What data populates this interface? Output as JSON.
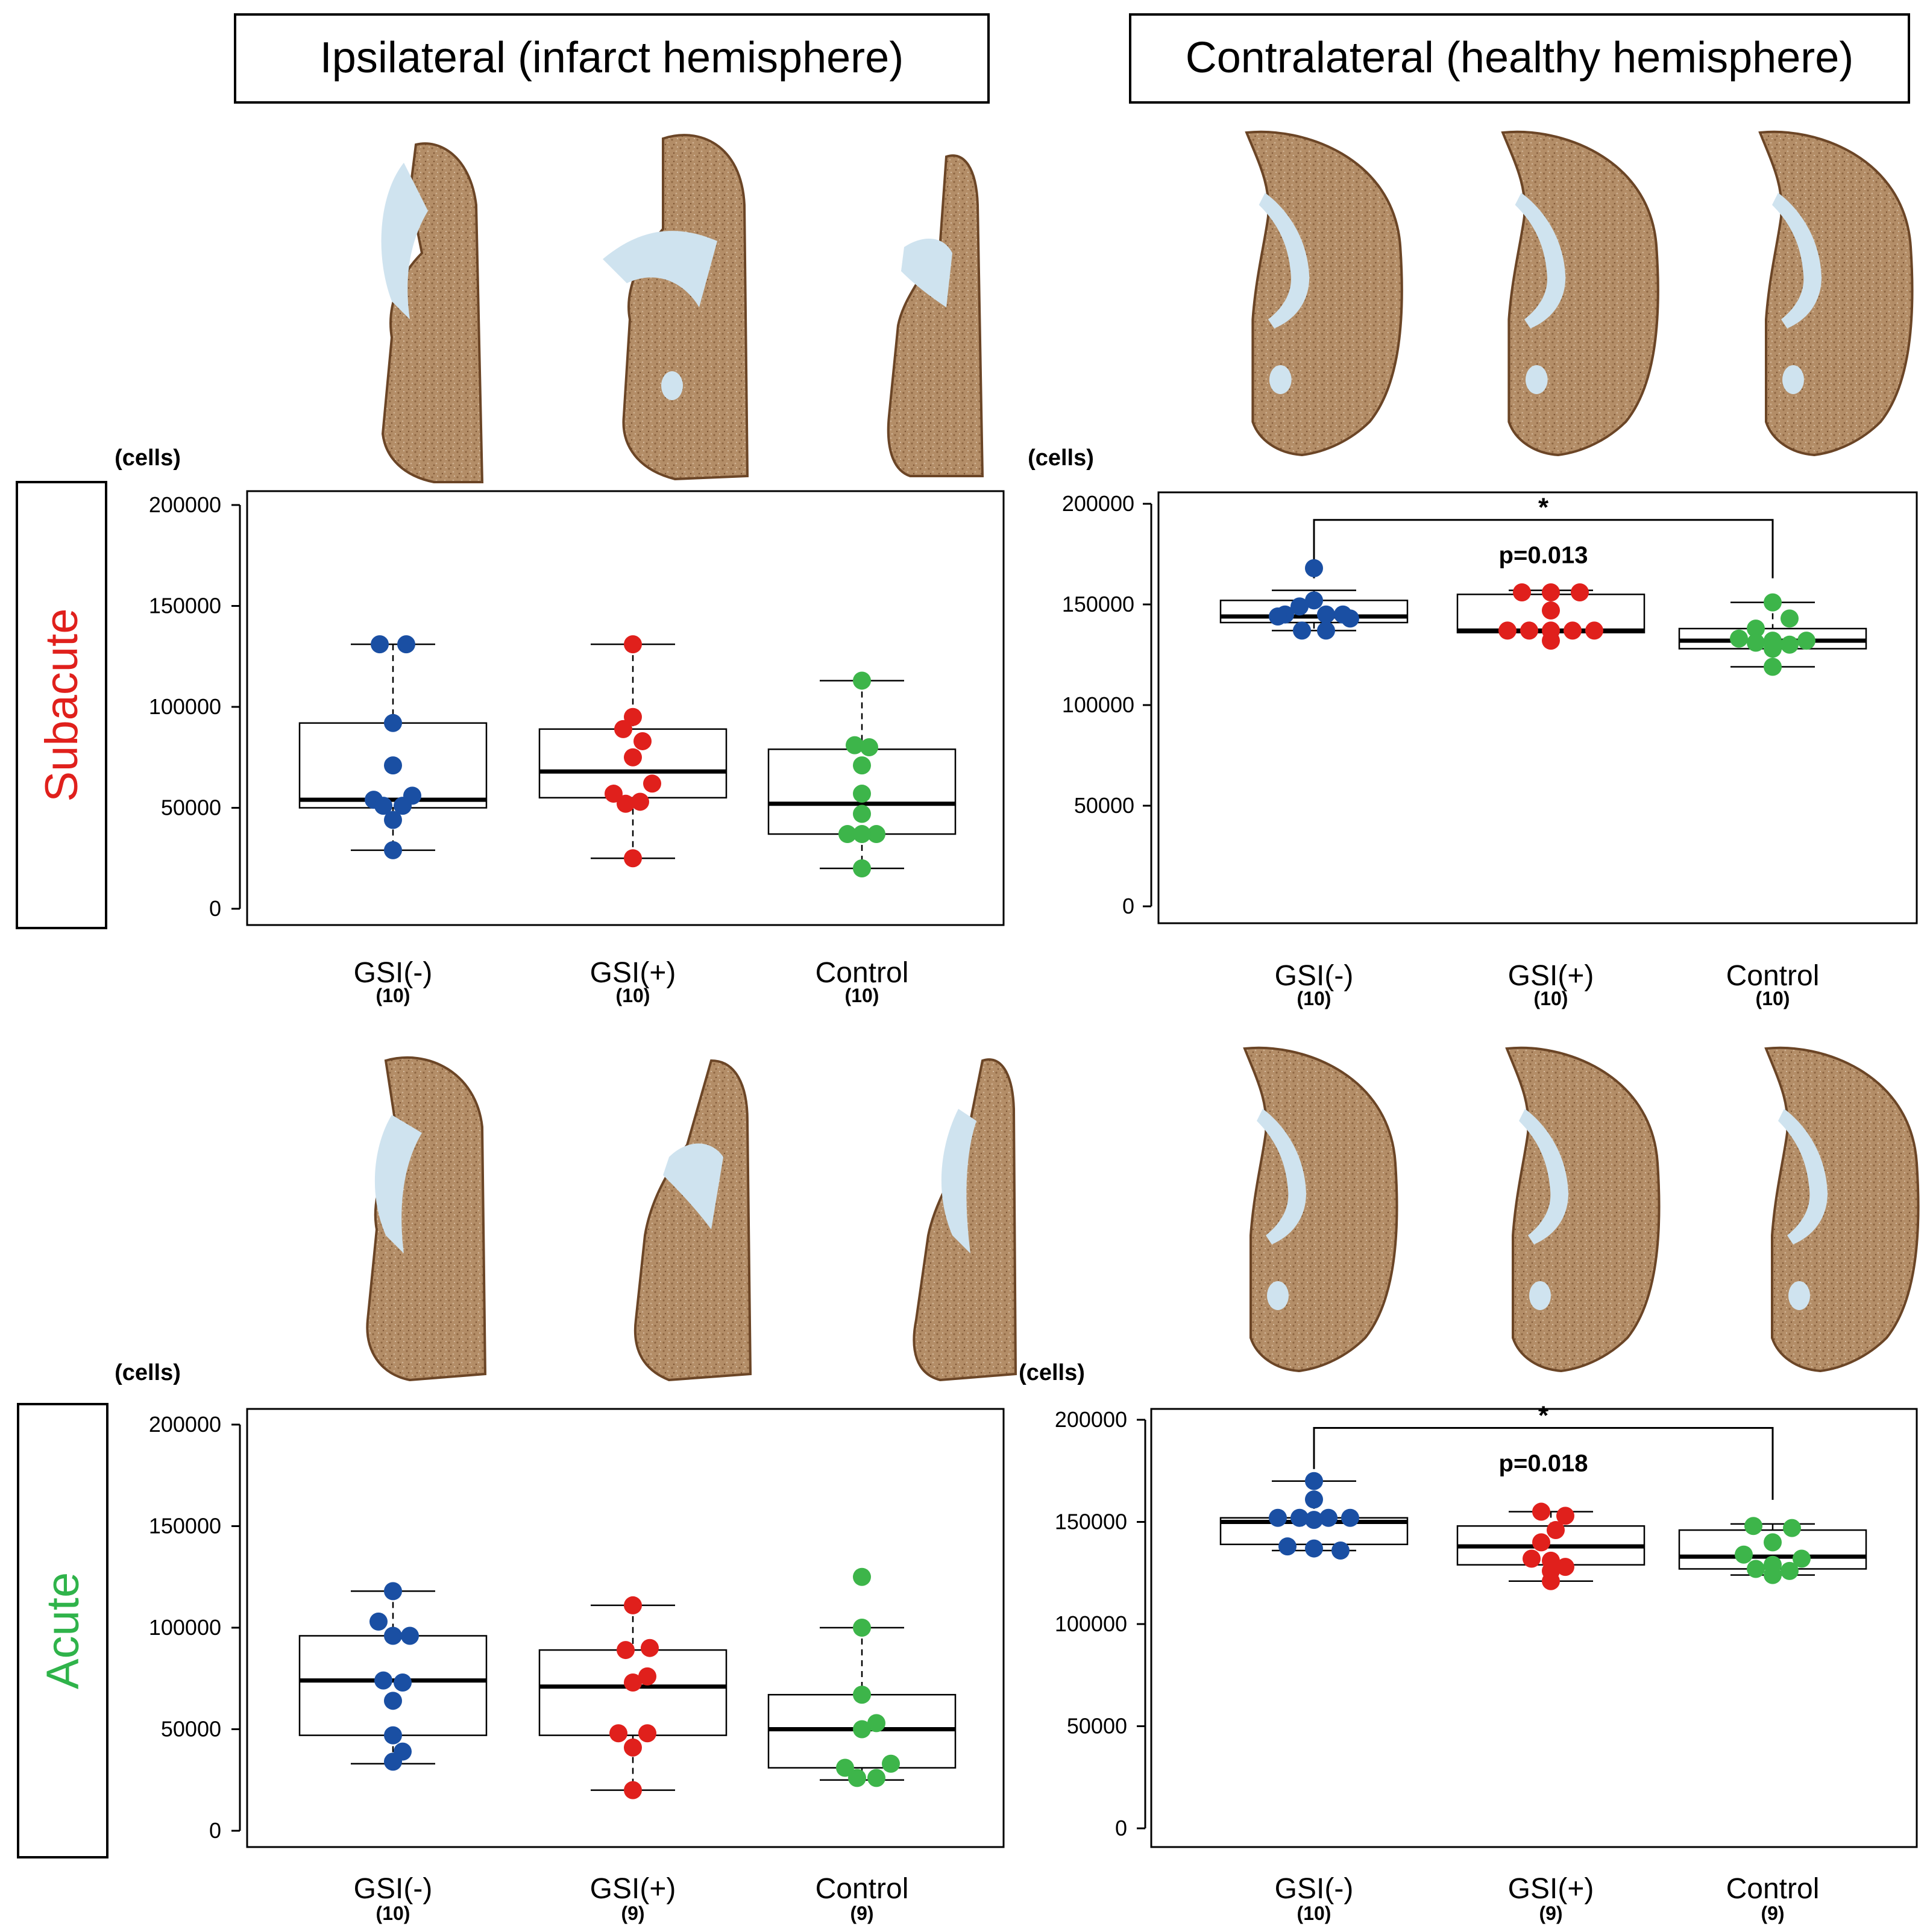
{
  "figure": {
    "col_headers": [
      "Ipsilateral (infarct hemisphere)",
      "Contralateral (healthy hemisphere)"
    ],
    "row_labels": [
      {
        "text": "Subacute",
        "color": "#e0201c"
      },
      {
        "text": "Acute",
        "color": "#2fb34a"
      }
    ],
    "colors": {
      "GSI(-)": "#1a4fa3",
      "GSI(+)": "#e0201c",
      "Control": "#3db54a",
      "tissue_brown": "#a5784e",
      "tissue_blue": "#cfe3ef"
    }
  },
  "chart_data": [
    {
      "type": "box-dot",
      "panel": "Subacute – Ipsilateral",
      "ylabel": "(cells)",
      "ylim": [
        0,
        200000
      ],
      "yticks": [
        0,
        50000,
        100000,
        150000,
        200000
      ],
      "categories": [
        "GSI(-)",
        "GSI(+)",
        "Control"
      ],
      "n_labels": [
        "(10)",
        "(10)",
        "(10)"
      ],
      "boxes": [
        {
          "min": 29000,
          "q1": 50000,
          "median": 54000,
          "q3": 92000,
          "max": 131000
        },
        {
          "min": 25000,
          "q1": 55000,
          "median": 68000,
          "q3": 89000,
          "max": 131000
        },
        {
          "min": 20000,
          "q1": 37000,
          "median": 52000,
          "q3": 79000,
          "max": 113000
        }
      ],
      "points": [
        [
          {
            "v": 131000,
            "o": -11
          },
          {
            "v": 131000,
            "o": 11
          },
          {
            "v": 92000,
            "o": 0
          },
          {
            "v": 71000,
            "o": 0
          },
          {
            "v": 56000,
            "o": 16
          },
          {
            "v": 54000,
            "o": -16
          },
          {
            "v": 51000,
            "o": -8
          },
          {
            "v": 51000,
            "o": 8
          },
          {
            "v": 44000,
            "o": 0
          },
          {
            "v": 29000,
            "o": 0
          }
        ],
        [
          {
            "v": 131000,
            "o": 0
          },
          {
            "v": 95000,
            "o": 0
          },
          {
            "v": 89000,
            "o": -8
          },
          {
            "v": 83000,
            "o": 8
          },
          {
            "v": 75000,
            "o": 0
          },
          {
            "v": 62000,
            "o": 16
          },
          {
            "v": 57000,
            "o": -16
          },
          {
            "v": 52000,
            "o": -6
          },
          {
            "v": 53000,
            "o": 6
          },
          {
            "v": 25000,
            "o": 0
          }
        ],
        [
          {
            "v": 113000,
            "o": 0
          },
          {
            "v": 81000,
            "o": -6
          },
          {
            "v": 80000,
            "o": 6
          },
          {
            "v": 71000,
            "o": 0
          },
          {
            "v": 57000,
            "o": 0
          },
          {
            "v": 47000,
            "o": 0
          },
          {
            "v": 37000,
            "o": -12
          },
          {
            "v": 37000,
            "o": 12
          },
          {
            "v": 37000,
            "o": 0
          },
          {
            "v": 20000,
            "o": 0
          }
        ]
      ],
      "significance": null
    },
    {
      "type": "box-dot",
      "panel": "Subacute – Contralateral",
      "ylabel": "(cells)",
      "ylim": [
        0,
        200000
      ],
      "yticks": [
        0,
        50000,
        100000,
        150000,
        200000
      ],
      "categories": [
        "GSI(-)",
        "GSI(+)",
        "Control"
      ],
      "n_labels": [
        "(10)",
        "(10)",
        "(10)"
      ],
      "boxes": [
        {
          "min": 137000,
          "q1": 141000,
          "median": 144000,
          "q3": 152000,
          "max": 157000
        },
        {
          "min": 136000,
          "q1": 136000,
          "median": 137000,
          "q3": 155000,
          "max": 157000
        },
        {
          "min": 119000,
          "q1": 128000,
          "median": 132000,
          "q3": 138000,
          "max": 151000
        }
      ],
      "points": [
        [
          {
            "v": 168000,
            "o": 0
          },
          {
            "v": 152000,
            "o": 0
          },
          {
            "v": 149000,
            "o": -12
          },
          {
            "v": 145000,
            "o": -24
          },
          {
            "v": 145000,
            "o": 24
          },
          {
            "v": 145000,
            "o": 10
          },
          {
            "v": 144000,
            "o": -30
          },
          {
            "v": 143000,
            "o": 30
          },
          {
            "v": 137000,
            "o": -10
          },
          {
            "v": 137000,
            "o": 10
          }
        ],
        [
          {
            "v": 156000,
            "o": -24
          },
          {
            "v": 156000,
            "o": 0
          },
          {
            "v": 156000,
            "o": 24
          },
          {
            "v": 147000,
            "o": 0
          },
          {
            "v": 137000,
            "o": -36
          },
          {
            "v": 137000,
            "o": -18
          },
          {
            "v": 137000,
            "o": 18
          },
          {
            "v": 137000,
            "o": 36
          },
          {
            "v": 137000,
            "o": 0
          },
          {
            "v": 132000,
            "o": 0
          }
        ],
        [
          {
            "v": 151000,
            "o": 0
          },
          {
            "v": 143000,
            "o": 14
          },
          {
            "v": 138000,
            "o": -14
          },
          {
            "v": 133000,
            "o": -28
          },
          {
            "v": 132000,
            "o": 28
          },
          {
            "v": 132000,
            "o": 0
          },
          {
            "v": 131000,
            "o": -14
          },
          {
            "v": 130000,
            "o": 14
          },
          {
            "v": 128000,
            "o": 0
          },
          {
            "v": 119000,
            "o": 0
          }
        ]
      ],
      "significance": {
        "from": 0,
        "to": 2,
        "star": "*",
        "p": "p=0.013",
        "y": 192000
      }
    },
    {
      "type": "box-dot",
      "panel": "Acute – Ipsilateral",
      "ylabel": "(cells)",
      "ylim": [
        0,
        200000
      ],
      "yticks": [
        0,
        50000,
        100000,
        150000,
        200000
      ],
      "categories": [
        "GSI(-)",
        "GSI(+)",
        "Control"
      ],
      "n_labels": [
        "(10)",
        "(9)",
        "(9)"
      ],
      "boxes": [
        {
          "min": 33000,
          "q1": 47000,
          "median": 74000,
          "q3": 96000,
          "max": 118000
        },
        {
          "min": 20000,
          "q1": 47000,
          "median": 71000,
          "q3": 89000,
          "max": 111000
        },
        {
          "min": 25000,
          "q1": 31000,
          "median": 50000,
          "q3": 67000,
          "max": 100000
        }
      ],
      "points": [
        [
          {
            "v": 118000,
            "o": 0
          },
          {
            "v": 103000,
            "o": -12
          },
          {
            "v": 96000,
            "o": 0
          },
          {
            "v": 96000,
            "o": 14
          },
          {
            "v": 74000,
            "o": -8
          },
          {
            "v": 73000,
            "o": 8
          },
          {
            "v": 64000,
            "o": 0
          },
          {
            "v": 47000,
            "o": 0
          },
          {
            "v": 39000,
            "o": 8
          },
          {
            "v": 34000,
            "o": 0
          }
        ],
        [
          {
            "v": 111000,
            "o": 0
          },
          {
            "v": 90000,
            "o": 14
          },
          {
            "v": 89000,
            "o": -6
          },
          {
            "v": 76000,
            "o": 12
          },
          {
            "v": 73000,
            "o": 0
          },
          {
            "v": 48000,
            "o": -12
          },
          {
            "v": 48000,
            "o": 12
          },
          {
            "v": 41000,
            "o": 0
          },
          {
            "v": 20000,
            "o": 0
          }
        ],
        [
          {
            "v": 125000,
            "o": 0
          },
          {
            "v": 100000,
            "o": 0
          },
          {
            "v": 67000,
            "o": 0
          },
          {
            "v": 53000,
            "o": 12
          },
          {
            "v": 50000,
            "o": 0
          },
          {
            "v": 33000,
            "o": 24
          },
          {
            "v": 31000,
            "o": -14
          },
          {
            "v": 26000,
            "o": -4
          },
          {
            "v": 26000,
            "o": 12
          }
        ]
      ],
      "significance": null
    },
    {
      "type": "box-dot",
      "panel": "Acute – Contralateral",
      "ylabel": "(cells)",
      "ylim": [
        0,
        200000
      ],
      "yticks": [
        0,
        50000,
        100000,
        150000,
        200000
      ],
      "categories": [
        "GSI(-)",
        "GSI(+)",
        "Control"
      ],
      "n_labels": [
        "(10)",
        "(9)",
        "(9)"
      ],
      "boxes": [
        {
          "min": 136000,
          "q1": 139000,
          "median": 150000,
          "q3": 152000,
          "max": 170000
        },
        {
          "min": 121000,
          "q1": 129000,
          "median": 138000,
          "q3": 148000,
          "max": 155000
        },
        {
          "min": 124000,
          "q1": 127000,
          "median": 133000,
          "q3": 146000,
          "max": 149000
        }
      ],
      "points": [
        [
          {
            "v": 170000,
            "o": 0
          },
          {
            "v": 161000,
            "o": 0
          },
          {
            "v": 152000,
            "o": -30
          },
          {
            "v": 152000,
            "o": -12
          },
          {
            "v": 152000,
            "o": 12
          },
          {
            "v": 152000,
            "o": 30
          },
          {
            "v": 151000,
            "o": 0
          },
          {
            "v": 138000,
            "o": -22
          },
          {
            "v": 137000,
            "o": 0
          },
          {
            "v": 136000,
            "o": 22
          }
        ],
        [
          {
            "v": 155000,
            "o": -8
          },
          {
            "v": 153000,
            "o": 12
          },
          {
            "v": 146000,
            "o": 4
          },
          {
            "v": 140000,
            "o": -8
          },
          {
            "v": 132000,
            "o": -16
          },
          {
            "v": 131000,
            "o": 0
          },
          {
            "v": 128000,
            "o": 12
          },
          {
            "v": 126000,
            "o": 0
          },
          {
            "v": 121000,
            "o": 0
          }
        ],
        [
          {
            "v": 148000,
            "o": -16
          },
          {
            "v": 147000,
            "o": 16
          },
          {
            "v": 140000,
            "o": 0
          },
          {
            "v": 134000,
            "o": -24
          },
          {
            "v": 132000,
            "o": 24
          },
          {
            "v": 127000,
            "o": -14
          },
          {
            "v": 126000,
            "o": 14
          },
          {
            "v": 124000,
            "o": 0
          },
          {
            "v": 129000,
            "o": 0
          }
        ]
      ],
      "significance": {
        "from": 0,
        "to": 2,
        "star": "*",
        "p": "p=0.018",
        "y": 196000
      }
    }
  ]
}
